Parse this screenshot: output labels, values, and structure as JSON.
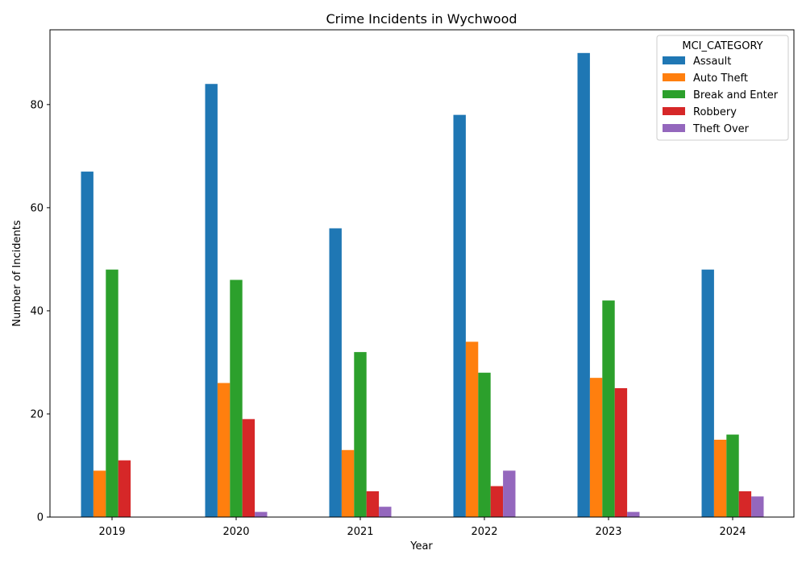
{
  "chart_data": {
    "type": "bar",
    "title": "Crime Incidents in Wychwood",
    "xlabel": "Year",
    "ylabel": "Number of Incidents",
    "categories": [
      "2019",
      "2020",
      "2021",
      "2022",
      "2023",
      "2024"
    ],
    "ylim": [
      0,
      94.5
    ],
    "yticks": [
      0,
      20,
      40,
      60,
      80
    ],
    "grid": false,
    "legend": {
      "title": "MCI_CATEGORY",
      "position": "top-right"
    },
    "series": [
      {
        "name": "Assault",
        "color": "#1f77b4",
        "values": [
          67,
          84,
          56,
          78,
          90,
          48
        ]
      },
      {
        "name": "Auto Theft",
        "color": "#ff7f0e",
        "values": [
          9,
          26,
          13,
          34,
          27,
          15
        ]
      },
      {
        "name": "Break and Enter",
        "color": "#2ca02c",
        "values": [
          48,
          46,
          32,
          28,
          42,
          16
        ]
      },
      {
        "name": "Robbery",
        "color": "#d62728",
        "values": [
          11,
          19,
          5,
          6,
          25,
          5
        ]
      },
      {
        "name": "Theft Over",
        "color": "#9467bd",
        "values": [
          0,
          1,
          2,
          9,
          1,
          4
        ]
      }
    ]
  }
}
